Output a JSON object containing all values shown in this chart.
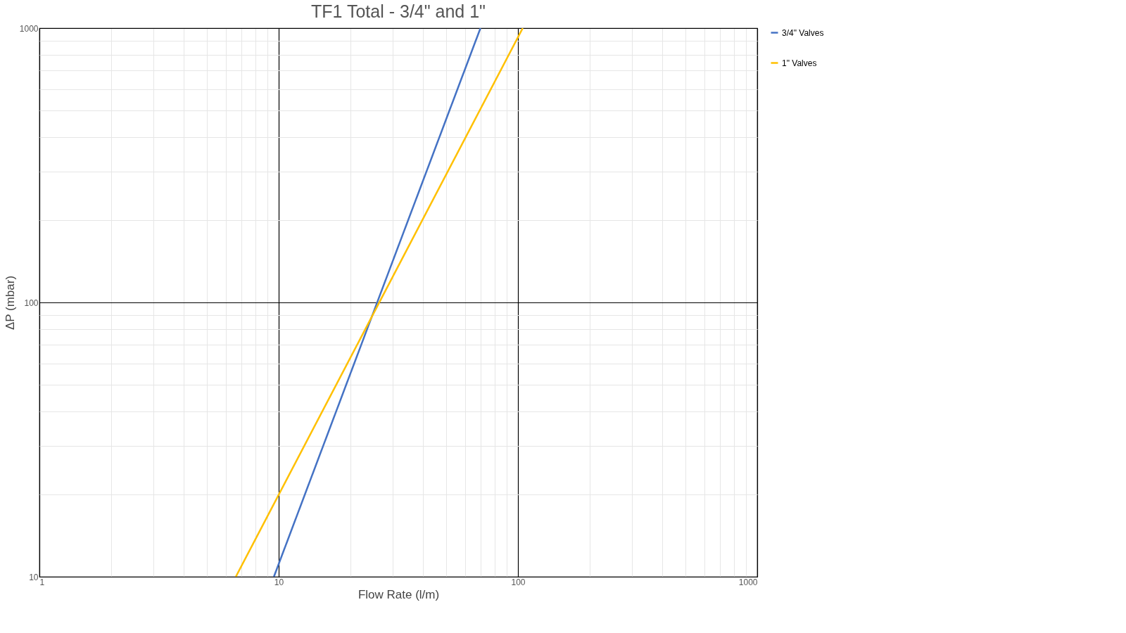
{
  "chart_data": {
    "type": "line",
    "title": "TF1 Total - 3/4\" and 1\"",
    "xlabel": "Flow Rate (l/m)",
    "ylabel": "ΔP (mbar)",
    "series": [
      {
        "name": "3/4\" Valves",
        "color": "#4472c4",
        "x": [
          9.55,
          69.7
        ],
        "values": [
          10,
          1000
        ]
      },
      {
        "name": "1\" Valves",
        "color": "#ffc000",
        "x": [
          6.62,
          104.7
        ],
        "values": [
          10,
          1000
        ]
      }
    ],
    "log": "xy",
    "xlim": [
      1,
      1000
    ],
    "ylim": [
      10,
      1000
    ],
    "xticks": [
      1,
      {
        "value": 2,
        "label": null
      },
      {
        "value": 3,
        "label": null
      },
      {
        "value": 4,
        "label": null
      },
      {
        "value": 5,
        "label": null
      },
      {
        "value": 6,
        "label": null
      },
      {
        "value": 7,
        "label": null
      },
      {
        "value": 8,
        "label": null
      },
      {
        "value": 9,
        "label": null
      },
      10,
      {
        "value": 20,
        "label": null
      },
      {
        "value": 30,
        "label": null
      },
      {
        "value": 40,
        "label": null
      },
      {
        "value": 50,
        "label": null
      },
      {
        "value": 60,
        "label": null
      },
      {
        "value": 70,
        "label": null
      },
      {
        "value": 80,
        "label": null
      },
      {
        "value": 90,
        "label": null
      },
      100,
      {
        "value": 200,
        "label": null
      },
      {
        "value": 300,
        "label": null
      },
      {
        "value": 400,
        "label": null
      },
      {
        "value": 500,
        "label": null
      },
      {
        "value": 600,
        "label": null
      },
      {
        "value": 700,
        "label": null
      },
      {
        "value": 800,
        "label": null
      },
      {
        "value": 900,
        "label": null
      },
      1000
    ],
    "yticks": [
      10,
      {
        "value": 20,
        "label": null
      },
      {
        "value": 30,
        "label": null
      },
      {
        "value": 40,
        "label": null
      },
      {
        "value": 50,
        "label": null
      },
      {
        "value": 60,
        "label": null
      },
      {
        "value": 70,
        "label": null
      },
      {
        "value": 80,
        "label": null
      },
      {
        "value": 90,
        "label": null
      },
      100,
      {
        "value": 200,
        "label": null
      },
      {
        "value": 300,
        "label": null
      },
      {
        "value": 400,
        "label": null
      },
      {
        "value": 500,
        "label": null
      },
      {
        "value": 600,
        "label": null
      },
      {
        "value": 700,
        "label": null
      },
      {
        "value": 800,
        "label": null
      },
      {
        "value": 900,
        "label": null
      },
      1000
    ],
    "grid": true,
    "legend": "right",
    "marker": "none",
    "line_style": "solid"
  }
}
